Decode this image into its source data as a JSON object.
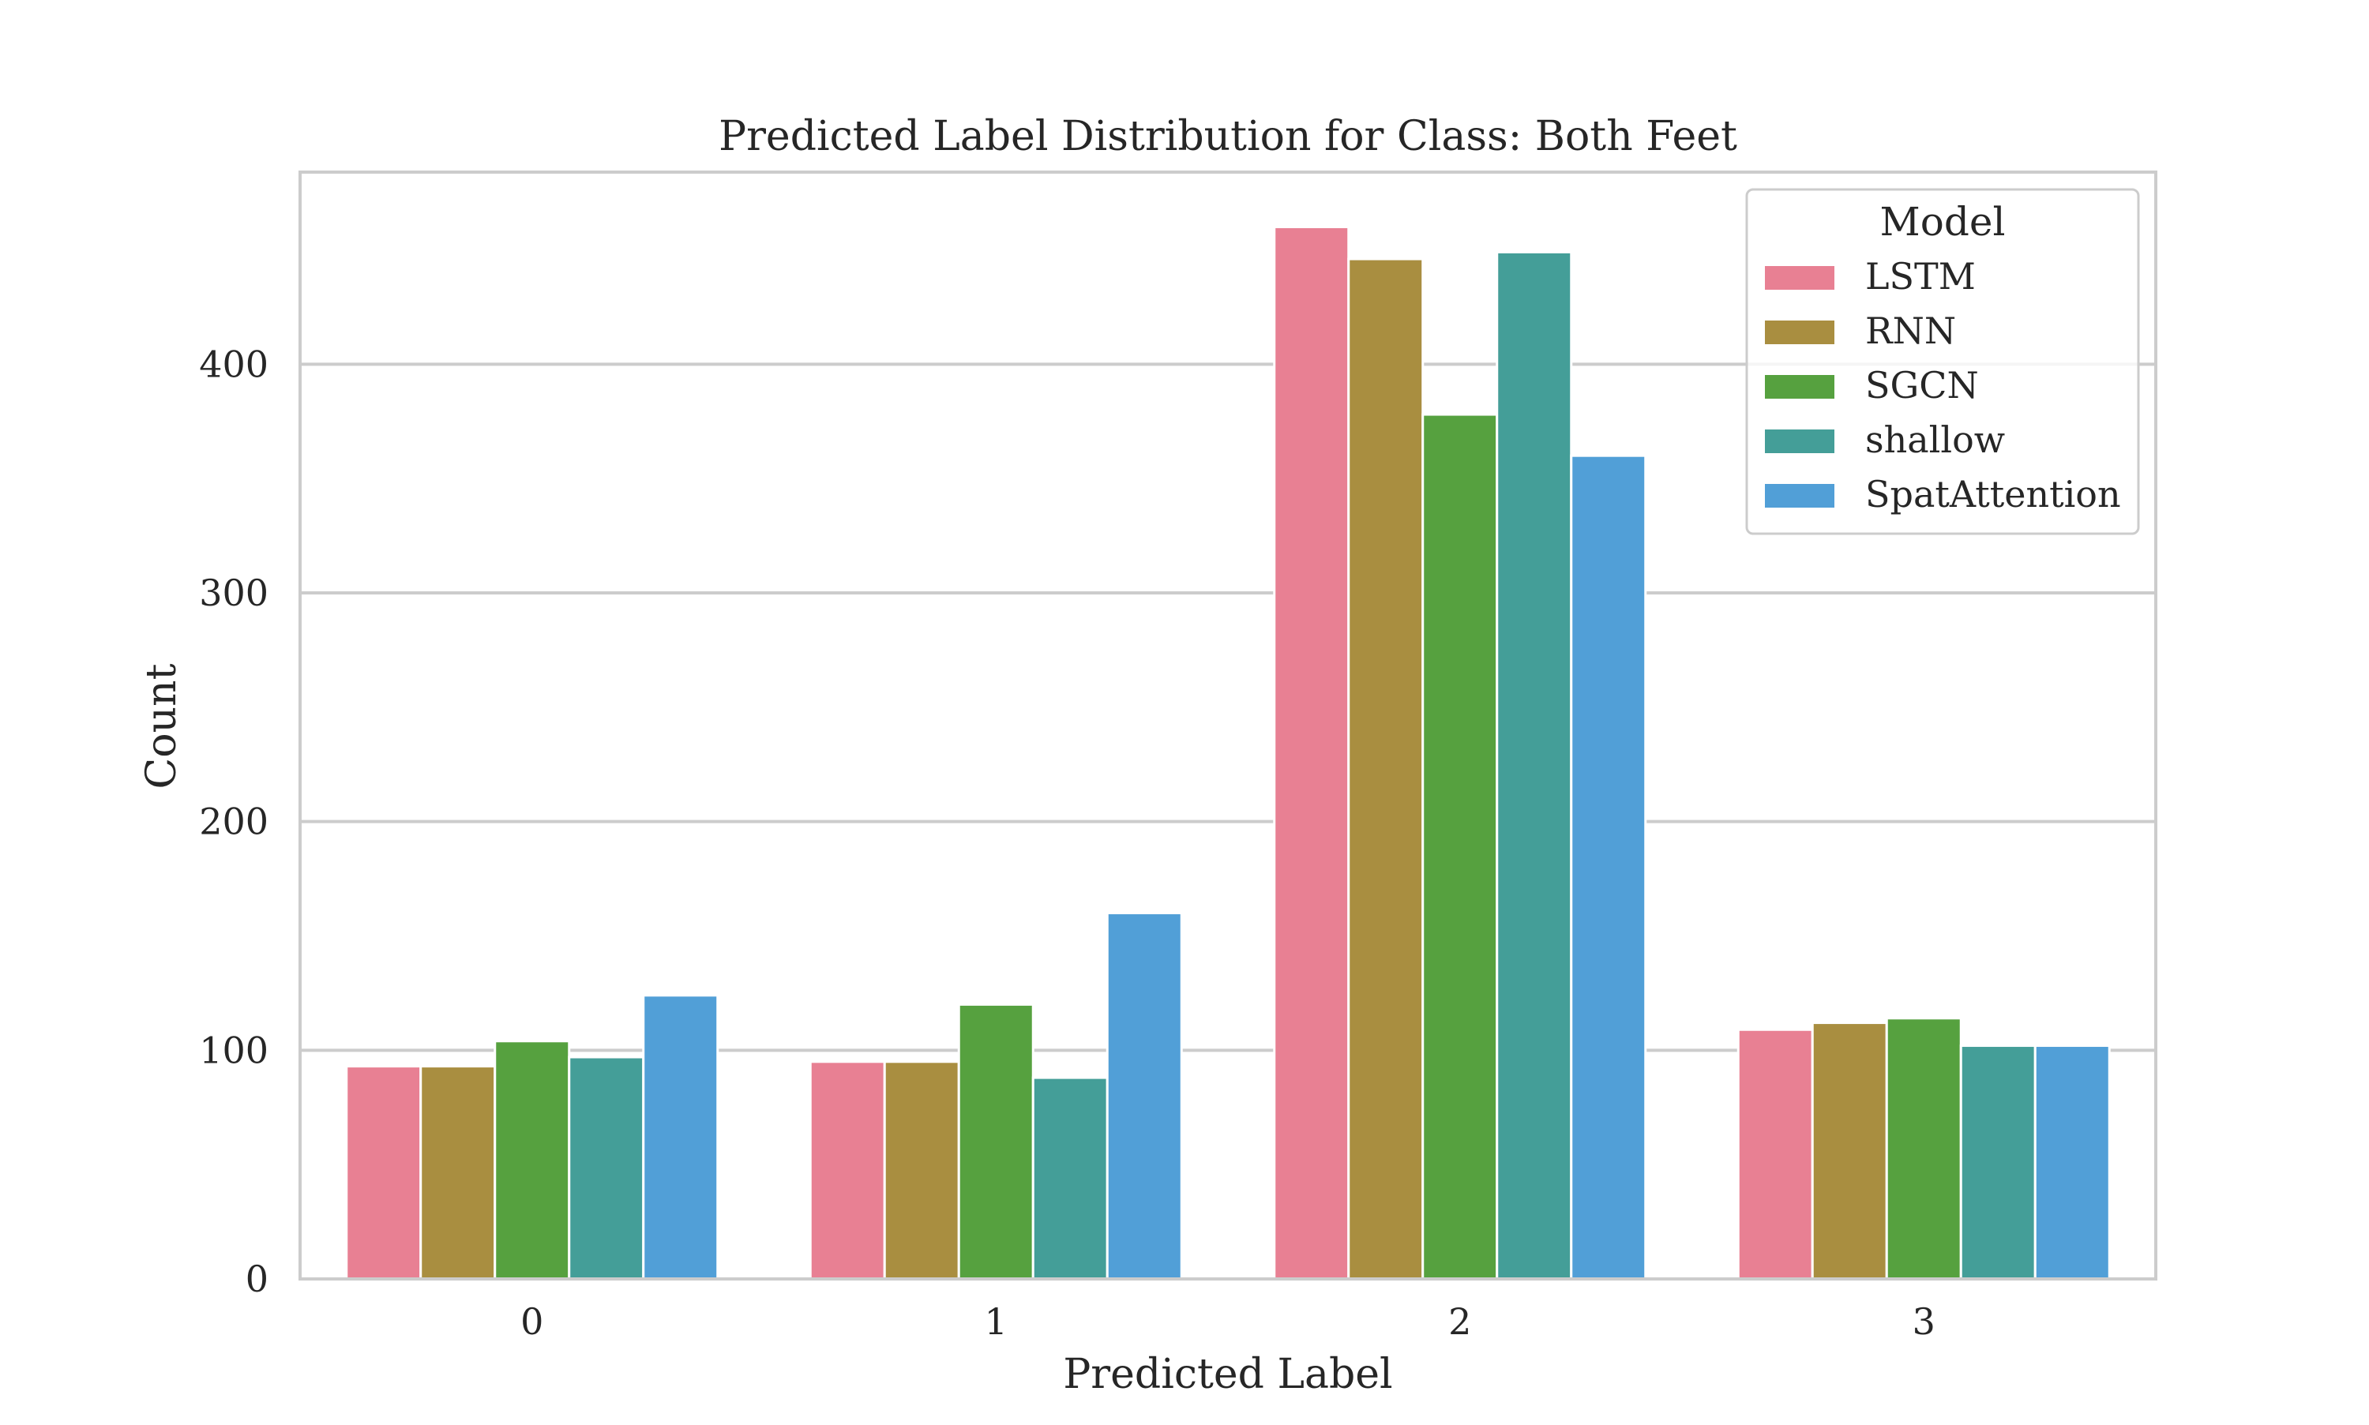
{
  "chart_data": {
    "type": "bar",
    "title": "Predicted Label Distribution for Class: Both Feet",
    "xlabel": "Predicted Label",
    "ylabel": "Count",
    "categories": [
      "0",
      "1",
      "2",
      "3"
    ],
    "ylim": [
      0,
      484
    ],
    "yticks": [
      0,
      100,
      200,
      300,
      400
    ],
    "grid": true,
    "legend": {
      "title": "Model",
      "position": "top-right"
    },
    "series": [
      {
        "name": "LSTM",
        "color": "#e88093",
        "values": [
          93,
          95,
          460,
          109
        ]
      },
      {
        "name": "RNN",
        "color": "#a98e40",
        "values": [
          93,
          95,
          446,
          112
        ]
      },
      {
        "name": "SGCN",
        "color": "#56a13f",
        "values": [
          104,
          120,
          378,
          114
        ]
      },
      {
        "name": "shallow",
        "color": "#449e98",
        "values": [
          97,
          88,
          449,
          102
        ]
      },
      {
        "name": "SpatAttention",
        "color": "#519fd7",
        "values": [
          124,
          160,
          360,
          102
        ]
      }
    ]
  }
}
